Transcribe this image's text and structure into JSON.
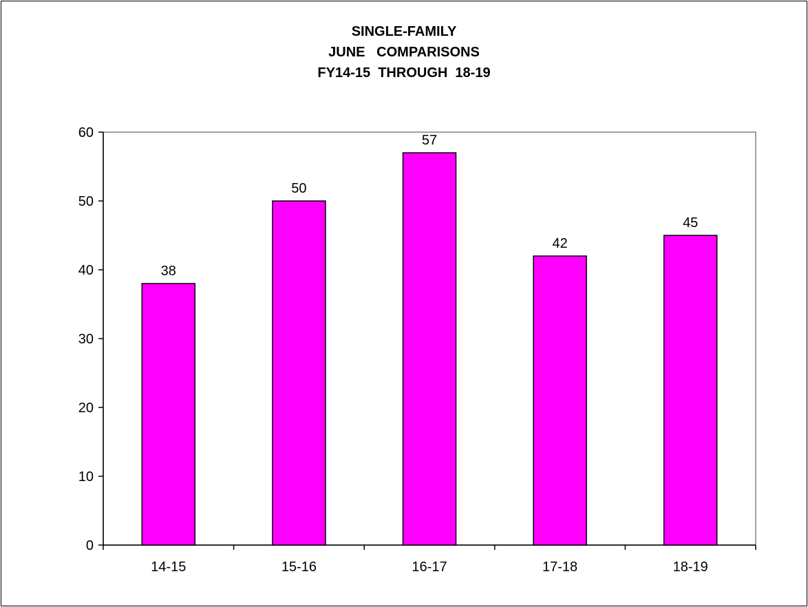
{
  "chart_data": {
    "type": "bar",
    "title_lines": [
      "SINGLE-FAMILY",
      "JUNE   COMPARISONS",
      "FY14-15  THROUGH  18-19"
    ],
    "categories": [
      "14-15",
      "15-16",
      "16-17",
      "17-18",
      "18-19"
    ],
    "values": [
      38,
      50,
      57,
      42,
      45
    ],
    "data_labels": [
      "38",
      "50",
      "57",
      "42",
      "45"
    ],
    "y_ticks": [
      0,
      10,
      20,
      30,
      40,
      50,
      60
    ],
    "ylim": [
      0,
      60
    ],
    "xlabel": "",
    "ylabel": "",
    "grid": false,
    "legend": "none",
    "colors": {
      "bar_fill": "#ff00ff",
      "bar_stroke": "#000000",
      "plot_border": "#808080",
      "axis": "#000000"
    }
  }
}
